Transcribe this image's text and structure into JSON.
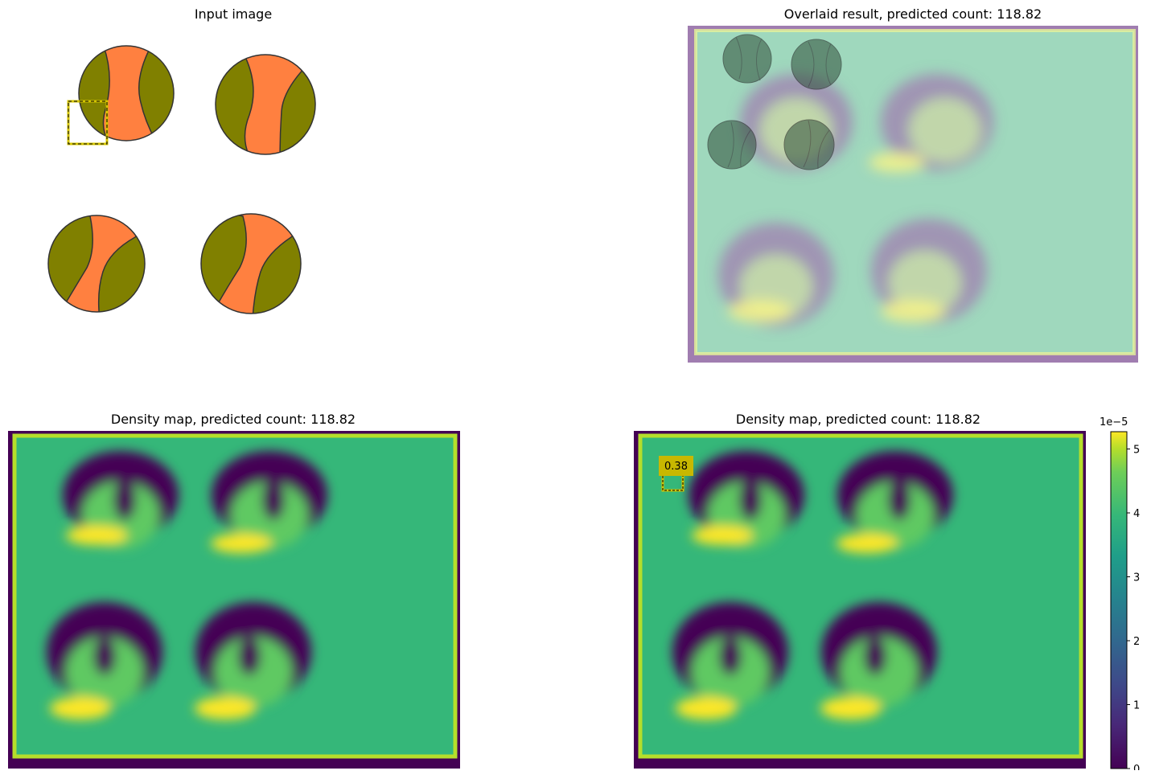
{
  "panels": {
    "input": {
      "title": "Input image"
    },
    "overlay": {
      "title": "Overlaid result, predicted count: 118.82"
    },
    "density_left": {
      "title": "Density map, predicted count: 118.82"
    },
    "density_right": {
      "title": "Density map, predicted count: 118.82",
      "box_value": "0.38"
    }
  },
  "colorbar": {
    "multiplier": "1e−5",
    "ticks": [
      "0",
      "1",
      "2",
      "3",
      "4",
      "5"
    ],
    "colormap": "viridis"
  },
  "colors": {
    "ball_orange": "#ff8040",
    "ball_olive": "#808000",
    "box_yellow": "#d4c400",
    "density_bg": "#35b779",
    "density_dark": "#440154",
    "density_bright": "#fde725",
    "overlay_bg": "#9fd8bd",
    "overlay_purple": "#a07db0"
  }
}
